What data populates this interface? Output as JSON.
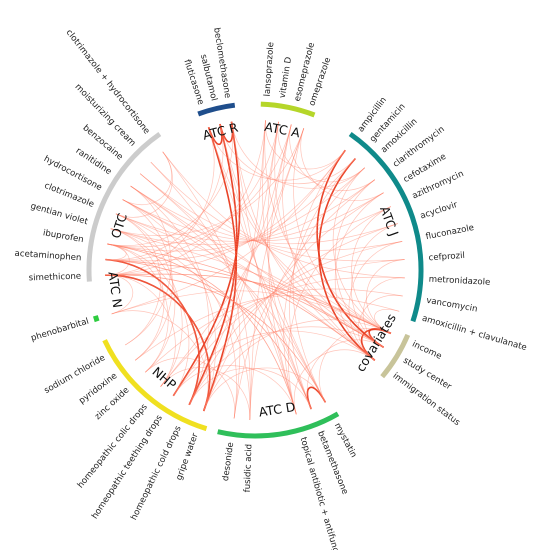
{
  "colors": {
    "link": "#ff7f66",
    "link_strong": "#e8391c",
    "label": "#222222"
  },
  "groups": [
    {
      "id": "atcr",
      "label": "ATC R",
      "color": "#1f4e8c",
      "start": 340,
      "end": 353,
      "labelAngle": 346,
      "items": [
        {
          "label": "fluticasone",
          "a": 342
        },
        {
          "label": "salbutamol",
          "a": 346.5
        },
        {
          "label": "beclomethasone",
          "a": 351
        }
      ]
    },
    {
      "id": "atca",
      "label": "ATC A",
      "color": "#b5d629",
      "start": 2,
      "end": 21,
      "labelAngle": 11,
      "items": [
        {
          "label": "lansoprazole",
          "a": 4
        },
        {
          "label": "vitamin D",
          "a": 9
        },
        {
          "label": "esomeprazole",
          "a": 14
        },
        {
          "label": "omeprazole",
          "a": 19
        }
      ]
    },
    {
      "id": "atcj",
      "label": "ATC J",
      "color": "#0f8a8a",
      "start": 35,
      "end": 108,
      "labelAngle": 70,
      "items": [
        {
          "label": "ampicillin",
          "a": 37
        },
        {
          "label": "gentamicin",
          "a": 42
        },
        {
          "label": "amoxicillin",
          "a": 47
        },
        {
          "label": "clarithromycin",
          "a": 53
        },
        {
          "label": "cefotaxime",
          "a": 59
        },
        {
          "label": "azithromycin",
          "a": 65
        },
        {
          "label": "acyclovir",
          "a": 72
        },
        {
          "label": "fluconazole",
          "a": 79
        },
        {
          "label": "cefprozil",
          "a": 86
        },
        {
          "label": "metronidazole",
          "a": 93
        },
        {
          "label": "vancomycin",
          "a": 100
        },
        {
          "label": "amoxicillin + clavulanate",
          "a": 106
        }
      ]
    },
    {
      "id": "cov",
      "label": "covariates",
      "color": "#c8c49a",
      "start": 113,
      "end": 130,
      "labelAngle": 121,
      "items": [
        {
          "label": "income",
          "a": 115
        },
        {
          "label": "study center",
          "a": 121
        },
        {
          "label": "immigration status",
          "a": 127
        }
      ]
    },
    {
      "id": "atcd",
      "label": "ATC D",
      "color": "#2fbf5a",
      "start": 150,
      "end": 193,
      "labelAngle": 171,
      "items": [
        {
          "label": "mystatin",
          "a": 152
        },
        {
          "label": "betamethasone",
          "a": 158
        },
        {
          "label": "topical antibiotic + antifungal",
          "a": 164
        },
        {
          "label": "fusidic acid",
          "a": 182
        },
        {
          "label": "desonide",
          "a": 188
        }
      ]
    },
    {
      "id": "nhp",
      "label": "NHP",
      "color": "#f0e020",
      "start": 197,
      "end": 245,
      "labelAngle": 220,
      "items": [
        {
          "label": "gripe water",
          "a": 200
        },
        {
          "label": "homeopathic cold drops",
          "a": 206
        },
        {
          "label": "homeopathic teething drops",
          "a": 213
        },
        {
          "label": "homeopathic colic drops",
          "a": 219
        },
        {
          "label": "zinc oxide",
          "a": 227
        },
        {
          "label": "pyridoxine",
          "a": 233
        },
        {
          "label": "sodium chloride",
          "a": 240
        }
      ]
    },
    {
      "id": "atcn",
      "label": "ATC N",
      "color": "#2ecc40",
      "start": 252,
      "end": 254,
      "labelAngle": 262,
      "items": [
        {
          "label": "phenobarbital",
          "a": 253
        }
      ]
    },
    {
      "id": "otc",
      "label": "OTC",
      "color": "#cccccc",
      "start": 266,
      "end": 325,
      "labelAngle": 288,
      "items": [
        {
          "label": "simethicone",
          "a": 268
        },
        {
          "label": "acetaminophen",
          "a": 274
        },
        {
          "label": "ibuprofen",
          "a": 280
        },
        {
          "label": "gentian violet",
          "a": 286
        },
        {
          "label": "clotrimazole",
          "a": 292
        },
        {
          "label": "hydrocortisone",
          "a": 298
        },
        {
          "label": "ranitidine",
          "a": 304
        },
        {
          "label": "benzocaine",
          "a": 310
        },
        {
          "label": "moisturizing cream",
          "a": 316
        },
        {
          "label": "clotrimazole + hydrocortisone",
          "a": 322
        }
      ]
    }
  ],
  "links": [
    [
      346.5,
      351,
      "strong"
    ],
    [
      342,
      346.5,
      "strong"
    ],
    [
      342,
      200,
      "strong"
    ],
    [
      346.5,
      206,
      "strong"
    ],
    [
      351,
      213,
      "strong"
    ],
    [
      268,
      200,
      "strong"
    ],
    [
      274,
      206,
      "strong"
    ],
    [
      115,
      121,
      "strong"
    ],
    [
      115,
      127,
      "strong"
    ],
    [
      121,
      37,
      "strong"
    ],
    [
      158,
      152,
      "strong"
    ],
    [
      127,
      42,
      "strong"
    ],
    [
      268,
      280,
      "normal"
    ],
    [
      274,
      280,
      "normal"
    ],
    [
      292,
      322,
      "normal"
    ],
    [
      298,
      322,
      "normal"
    ],
    [
      4,
      37,
      "normal"
    ],
    [
      9,
      47,
      "normal"
    ],
    [
      14,
      53,
      "normal"
    ],
    [
      19,
      59,
      "normal"
    ],
    [
      4,
      115,
      "normal"
    ],
    [
      9,
      121,
      "normal"
    ],
    [
      14,
      127,
      "normal"
    ],
    [
      19,
      115,
      "normal"
    ],
    [
      47,
      115,
      "normal"
    ],
    [
      53,
      121,
      "normal"
    ],
    [
      59,
      127,
      "normal"
    ],
    [
      65,
      115,
      "normal"
    ],
    [
      72,
      121,
      "normal"
    ],
    [
      79,
      127,
      "normal"
    ],
    [
      86,
      115,
      "normal"
    ],
    [
      93,
      121,
      "normal"
    ],
    [
      100,
      127,
      "normal"
    ],
    [
      106,
      115,
      "normal"
    ],
    [
      37,
      152,
      "normal"
    ],
    [
      42,
      158,
      "normal"
    ],
    [
      47,
      164,
      "normal"
    ],
    [
      53,
      182,
      "normal"
    ],
    [
      59,
      188,
      "normal"
    ],
    [
      65,
      164,
      "normal"
    ],
    [
      72,
      200,
      "normal"
    ],
    [
      79,
      206,
      "normal"
    ],
    [
      86,
      213,
      "normal"
    ],
    [
      93,
      219,
      "normal"
    ],
    [
      100,
      227,
      "normal"
    ],
    [
      106,
      233,
      "normal"
    ],
    [
      268,
      37,
      "normal"
    ],
    [
      274,
      42,
      "normal"
    ],
    [
      280,
      47,
      "normal"
    ],
    [
      286,
      53,
      "normal"
    ],
    [
      292,
      59,
      "normal"
    ],
    [
      298,
      65,
      "normal"
    ],
    [
      304,
      72,
      "normal"
    ],
    [
      310,
      79,
      "normal"
    ],
    [
      316,
      86,
      "normal"
    ],
    [
      322,
      93,
      "normal"
    ],
    [
      268,
      115,
      "normal"
    ],
    [
      274,
      121,
      "normal"
    ],
    [
      280,
      127,
      "normal"
    ],
    [
      286,
      115,
      "normal"
    ],
    [
      292,
      121,
      "normal"
    ],
    [
      298,
      127,
      "normal"
    ],
    [
      304,
      115,
      "normal"
    ],
    [
      310,
      121,
      "normal"
    ],
    [
      268,
      152,
      "normal"
    ],
    [
      274,
      158,
      "normal"
    ],
    [
      280,
      164,
      "normal"
    ],
    [
      286,
      182,
      "normal"
    ],
    [
      292,
      188,
      "normal"
    ],
    [
      298,
      152,
      "normal"
    ],
    [
      304,
      158,
      "normal"
    ],
    [
      310,
      164,
      "normal"
    ],
    [
      316,
      182,
      "normal"
    ],
    [
      322,
      188,
      "normal"
    ],
    [
      268,
      219,
      "normal"
    ],
    [
      280,
      227,
      "normal"
    ],
    [
      286,
      233,
      "normal"
    ],
    [
      292,
      240,
      "normal"
    ],
    [
      298,
      200,
      "normal"
    ],
    [
      304,
      206,
      "normal"
    ],
    [
      342,
      37,
      "normal"
    ],
    [
      346.5,
      42,
      "normal"
    ],
    [
      351,
      47,
      "normal"
    ],
    [
      342,
      115,
      "normal"
    ],
    [
      346.5,
      121,
      "normal"
    ],
    [
      351,
      127,
      "normal"
    ],
    [
      342,
      152,
      "normal"
    ],
    [
      346.5,
      158,
      "normal"
    ],
    [
      351,
      164,
      "normal"
    ],
    [
      342,
      268,
      "normal"
    ],
    [
      346.5,
      274,
      "normal"
    ],
    [
      351,
      280,
      "normal"
    ],
    [
      4,
      200,
      "normal"
    ],
    [
      9,
      206,
      "normal"
    ],
    [
      14,
      213,
      "normal"
    ],
    [
      19,
      219,
      "normal"
    ],
    [
      4,
      268,
      "normal"
    ],
    [
      9,
      274,
      "normal"
    ],
    [
      14,
      280,
      "normal"
    ],
    [
      19,
      286,
      "normal"
    ],
    [
      4,
      152,
      "normal"
    ],
    [
      9,
      158,
      "normal"
    ],
    [
      14,
      164,
      "normal"
    ],
    [
      19,
      182,
      "normal"
    ],
    [
      253,
      37,
      "normal"
    ],
    [
      253,
      115,
      "normal"
    ],
    [
      253,
      200,
      "normal"
    ],
    [
      253,
      268,
      "normal"
    ],
    [
      115,
      152,
      "normal"
    ],
    [
      121,
      158,
      "normal"
    ],
    [
      127,
      164,
      "normal"
    ],
    [
      115,
      200,
      "normal"
    ],
    [
      121,
      206,
      "normal"
    ],
    [
      127,
      213,
      "normal"
    ],
    [
      115,
      268,
      "normal"
    ],
    [
      121,
      274,
      "normal"
    ],
    [
      127,
      280,
      "normal"
    ],
    [
      152,
      200,
      "normal"
    ],
    [
      158,
      206,
      "normal"
    ],
    [
      164,
      213,
      "normal"
    ],
    [
      182,
      219,
      "normal"
    ],
    [
      188,
      227,
      "normal"
    ],
    [
      152,
      268,
      "normal"
    ],
    [
      158,
      274,
      "normal"
    ],
    [
      164,
      280,
      "normal"
    ],
    [
      200,
      268,
      "normal"
    ],
    [
      206,
      274,
      "normal"
    ],
    [
      213,
      280,
      "normal"
    ],
    [
      219,
      286,
      "normal"
    ],
    [
      227,
      292,
      "normal"
    ],
    [
      233,
      298,
      "normal"
    ],
    [
      240,
      304,
      "normal"
    ]
  ]
}
